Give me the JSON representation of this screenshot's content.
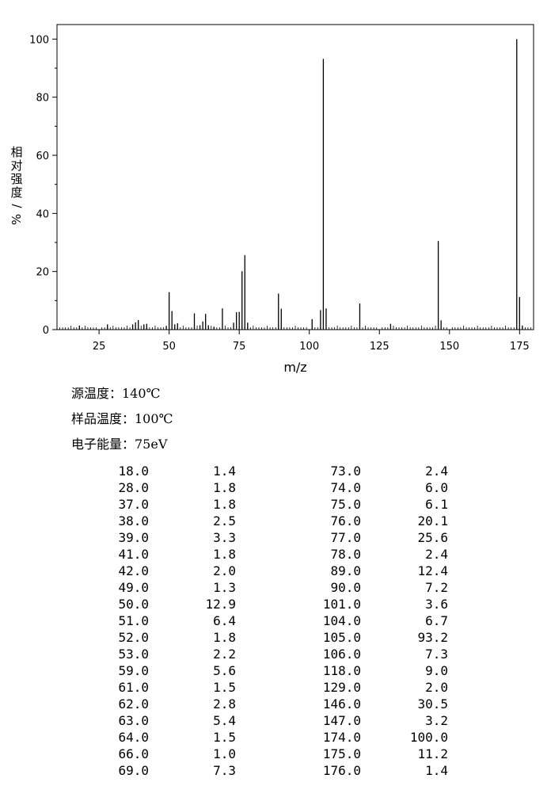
{
  "chart_data": {
    "type": "bar",
    "xlabel": "m/z",
    "ylabel": "相对强度/%",
    "xlim": [
      10,
      180
    ],
    "ylim": [
      0,
      105
    ],
    "x_ticks": [
      25,
      50,
      75,
      100,
      125,
      150,
      175
    ],
    "y_ticks": [
      0,
      20,
      40,
      60,
      80,
      100
    ],
    "grid": false,
    "points": [
      {
        "mz": 18.0,
        "intensity": 1.4
      },
      {
        "mz": 28.0,
        "intensity": 1.8
      },
      {
        "mz": 37.0,
        "intensity": 1.8
      },
      {
        "mz": 38.0,
        "intensity": 2.5
      },
      {
        "mz": 39.0,
        "intensity": 3.3
      },
      {
        "mz": 41.0,
        "intensity": 1.8
      },
      {
        "mz": 42.0,
        "intensity": 2.0
      },
      {
        "mz": 49.0,
        "intensity": 1.3
      },
      {
        "mz": 50.0,
        "intensity": 12.9
      },
      {
        "mz": 51.0,
        "intensity": 6.4
      },
      {
        "mz": 52.0,
        "intensity": 1.8
      },
      {
        "mz": 53.0,
        "intensity": 2.2
      },
      {
        "mz": 59.0,
        "intensity": 5.6
      },
      {
        "mz": 61.0,
        "intensity": 1.5
      },
      {
        "mz": 62.0,
        "intensity": 2.8
      },
      {
        "mz": 63.0,
        "intensity": 5.4
      },
      {
        "mz": 64.0,
        "intensity": 1.5
      },
      {
        "mz": 66.0,
        "intensity": 1.0
      },
      {
        "mz": 69.0,
        "intensity": 7.3
      },
      {
        "mz": 73.0,
        "intensity": 2.4
      },
      {
        "mz": 74.0,
        "intensity": 6.0
      },
      {
        "mz": 75.0,
        "intensity": 6.1
      },
      {
        "mz": 76.0,
        "intensity": 20.1
      },
      {
        "mz": 77.0,
        "intensity": 25.6
      },
      {
        "mz": 78.0,
        "intensity": 2.4
      },
      {
        "mz": 89.0,
        "intensity": 12.4
      },
      {
        "mz": 90.0,
        "intensity": 7.2
      },
      {
        "mz": 101.0,
        "intensity": 3.6
      },
      {
        "mz": 104.0,
        "intensity": 6.7
      },
      {
        "mz": 105.0,
        "intensity": 93.2
      },
      {
        "mz": 106.0,
        "intensity": 7.3
      },
      {
        "mz": 118.0,
        "intensity": 9.0
      },
      {
        "mz": 129.0,
        "intensity": 2.0
      },
      {
        "mz": 146.0,
        "intensity": 30.5
      },
      {
        "mz": 147.0,
        "intensity": 3.2
      },
      {
        "mz": 174.0,
        "intensity": 100.0
      },
      {
        "mz": 175.0,
        "intensity": 11.2
      },
      {
        "mz": 176.0,
        "intensity": 1.4
      }
    ]
  },
  "conditions": {
    "source_temp": "源温度：140℃",
    "sample_temp": "样品温度：100℃",
    "electron_energy": "电子能量：75eV"
  },
  "table": {
    "left": [
      [
        "18.0",
        "1.4"
      ],
      [
        "28.0",
        "1.8"
      ],
      [
        "37.0",
        "1.8"
      ],
      [
        "38.0",
        "2.5"
      ],
      [
        "39.0",
        "3.3"
      ],
      [
        "41.0",
        "1.8"
      ],
      [
        "42.0",
        "2.0"
      ],
      [
        "49.0",
        "1.3"
      ],
      [
        "50.0",
        "12.9"
      ],
      [
        "51.0",
        "6.4"
      ],
      [
        "52.0",
        "1.8"
      ],
      [
        "53.0",
        "2.2"
      ],
      [
        "59.0",
        "5.6"
      ],
      [
        "61.0",
        "1.5"
      ],
      [
        "62.0",
        "2.8"
      ],
      [
        "63.0",
        "5.4"
      ],
      [
        "64.0",
        "1.5"
      ],
      [
        "66.0",
        "1.0"
      ],
      [
        "69.0",
        "7.3"
      ]
    ],
    "right": [
      [
        "73.0",
        "2.4"
      ],
      [
        "74.0",
        "6.0"
      ],
      [
        "75.0",
        "6.1"
      ],
      [
        "76.0",
        "20.1"
      ],
      [
        "77.0",
        "25.6"
      ],
      [
        "78.0",
        "2.4"
      ],
      [
        "89.0",
        "12.4"
      ],
      [
        "90.0",
        "7.2"
      ],
      [
        "101.0",
        "3.6"
      ],
      [
        "104.0",
        "6.7"
      ],
      [
        "105.0",
        "93.2"
      ],
      [
        "106.0",
        "7.3"
      ],
      [
        "118.0",
        "9.0"
      ],
      [
        "129.0",
        "2.0"
      ],
      [
        "146.0",
        "30.5"
      ],
      [
        "147.0",
        "3.2"
      ],
      [
        "174.0",
        "100.0"
      ],
      [
        "175.0",
        "11.2"
      ],
      [
        "176.0",
        "1.4"
      ]
    ]
  }
}
